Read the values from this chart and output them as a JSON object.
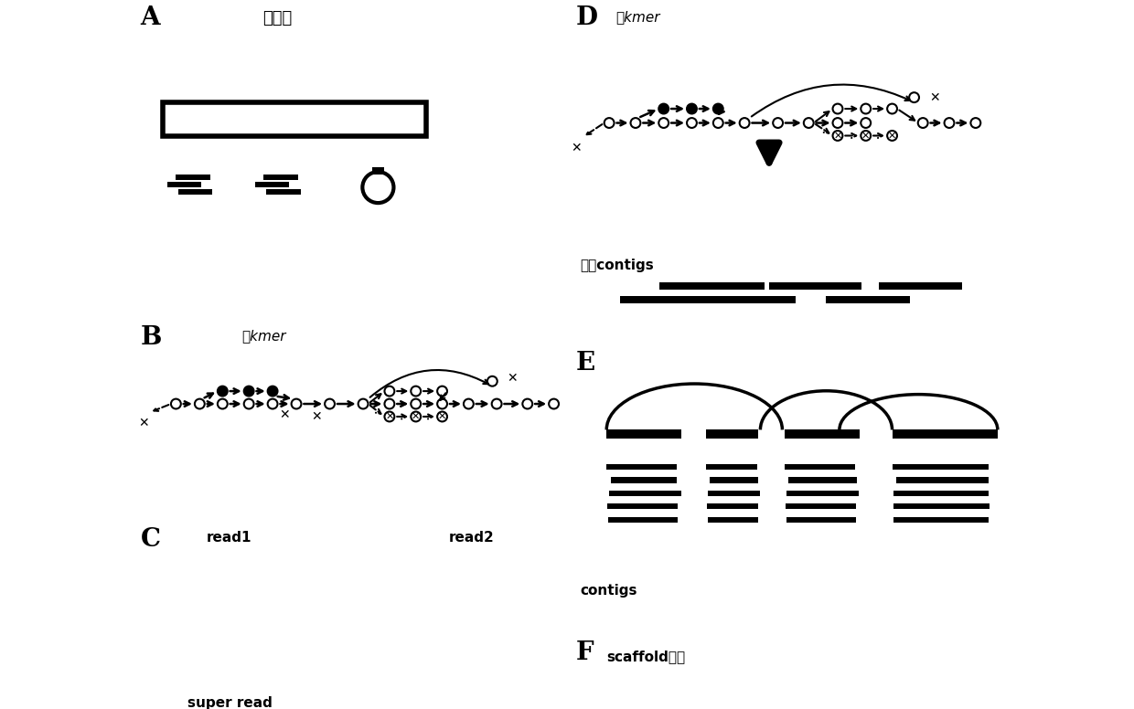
{
  "bg_color": "#ffffff",
  "panel_label_fontsize": 20,
  "title_A": "基因组",
  "title_B_label": "小kmer",
  "title_C_label1": "read1",
  "title_C_label2": "read2",
  "title_D_label": "大kmer",
  "title_D_sub": "初级contigs",
  "title_E_sub": "contigs",
  "title_F_label": "scaffold构建",
  "super_read_label": "super read",
  "bar_color": "#000000"
}
